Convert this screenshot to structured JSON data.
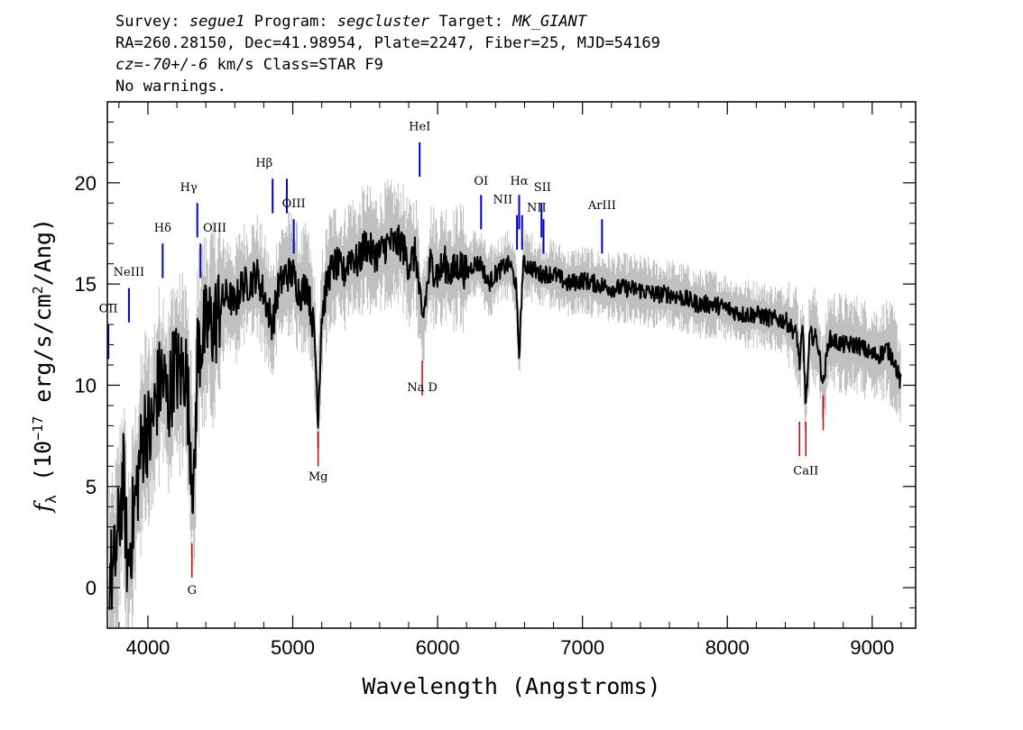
{
  "header": {
    "line1": {
      "survey_label": "Survey:",
      "survey": "segue1",
      "program_label": "Program:",
      "program": "segcluster",
      "target_label": "Target:",
      "target": "MK_GIANT"
    },
    "line2": "RA=260.28150, Dec=41.98954, Plate=2247, Fiber=25, MJD=54169",
    "line3": {
      "cz": "cz=-70+/-6",
      "rest": " km/s  Class=STAR F9"
    },
    "line4": "No warnings."
  },
  "chart_data": {
    "type": "line",
    "xlabel": "Wavelength (Angstroms)",
    "ylabel": "f_λ (10^-17 erg/s/cm^2/Ang)",
    "ylabel_parts": {
      "f": "f",
      "sub": "λ",
      "pre": " (10",
      "sup1": "−17",
      "mid": " erg/s/cm",
      "sup2": "2",
      "post": "/Ang)"
    },
    "xlim": [
      3720,
      9300
    ],
    "ylim": [
      -2,
      24
    ],
    "xticks": [
      4000,
      5000,
      6000,
      7000,
      8000,
      9000
    ],
    "yticks": [
      0,
      5,
      10,
      15,
      20
    ],
    "xtick_labels": [
      "4000",
      "5000",
      "6000",
      "7000",
      "8000",
      "9000"
    ],
    "ytick_labels": [
      "0",
      "5",
      "10",
      "15",
      "20"
    ],
    "colors": {
      "spectrum": "#000000",
      "error": "#c0c0c0",
      "emission": "#0000cc",
      "absorption": "#cc0000"
    },
    "series": [
      {
        "x": [
          3730,
          3760,
          3800,
          3830,
          3860,
          3900,
          3940,
          3980,
          4020,
          4060,
          4100,
          4140,
          4180,
          4220,
          4260,
          4300,
          4320,
          4340,
          4380,
          4420,
          4460,
          4500,
          4550,
          4600,
          4650,
          4700,
          4750,
          4800,
          4861,
          4900,
          4950,
          5000,
          5050,
          5100,
          5150,
          5175,
          5200,
          5250,
          5300,
          5350,
          5400,
          5450,
          5500,
          5550,
          5600,
          5650,
          5700,
          5750,
          5800,
          5850,
          5893,
          5950,
          6000,
          6050,
          6100,
          6150,
          6200,
          6250,
          6300,
          6350,
          6400,
          6450,
          6500,
          6540,
          6563,
          6590,
          6650,
          6700,
          6800,
          6900,
          7000,
          7100,
          7200,
          7300,
          7400,
          7500,
          7600,
          7700,
          7800,
          7900,
          8000,
          8100,
          8200,
          8300,
          8400,
          8480,
          8498,
          8520,
          8542,
          8570,
          8620,
          8662,
          8700,
          8800,
          8900,
          9000,
          9050,
          9100,
          9150,
          9200
        ],
        "y": [
          1.0,
          0.5,
          3.0,
          5.5,
          1.0,
          3.5,
          6.0,
          8.0,
          7.5,
          9.5,
          10.5,
          9.0,
          11.0,
          10.5,
          11.0,
          6.5,
          4.5,
          11.5,
          12.5,
          13.0,
          13.0,
          14.0,
          14.5,
          14.0,
          15.0,
          15.0,
          15.5,
          14.5,
          13.0,
          14.8,
          15.5,
          15.5,
          14.5,
          15.0,
          12.5,
          8.5,
          13.5,
          15.5,
          16.0,
          15.5,
          16.5,
          16.0,
          17.0,
          16.5,
          16.5,
          17.0,
          17.0,
          17.0,
          16.0,
          16.5,
          13.0,
          16.0,
          15.5,
          16.0,
          15.5,
          16.0,
          15.5,
          16.0,
          16.0,
          15.0,
          15.5,
          15.8,
          16.0,
          15.0,
          11.5,
          16.0,
          15.8,
          15.5,
          15.5,
          15.0,
          15.2,
          15.0,
          14.8,
          14.8,
          14.7,
          14.5,
          14.5,
          14.3,
          14.0,
          14.0,
          13.8,
          13.5,
          13.5,
          13.3,
          13.2,
          12.5,
          11.0,
          12.8,
          9.0,
          12.5,
          12.3,
          10.0,
          12.3,
          12.0,
          12.0,
          11.5,
          11.5,
          11.8,
          11.3,
          10.0
        ]
      }
    ],
    "emission_lines": [
      {
        "label": "OII",
        "x": 3727,
        "y_top": 13.0
      },
      {
        "label": "NeIII",
        "x": 3869,
        "y_top": 14.8
      },
      {
        "label": "Hδ",
        "x": 4102,
        "y_top": 17.0
      },
      {
        "label": "Hγ",
        "x": 4341,
        "y_top": 19.0
      },
      {
        "label": "OIII",
        "x": 4363,
        "y_top": 17.0
      },
      {
        "label": "Hβ",
        "x": 4861,
        "y_top": 20.2
      },
      {
        "label": "OIII",
        "x": 4959,
        "y_top": 20.2
      },
      {
        "label": "OIII",
        "x": 5007,
        "y_top": 18.2
      },
      {
        "label": "HeI",
        "x": 5876,
        "y_top": 22.0
      },
      {
        "label": "OI",
        "x": 6300,
        "y_top": 19.4
      },
      {
        "label": "NII",
        "x": 6548,
        "y_top": 18.4
      },
      {
        "label": "Hα",
        "x": 6563,
        "y_top": 19.4
      },
      {
        "label": "NII",
        "x": 6583,
        "y_top": 18.4
      },
      {
        "label": "SII",
        "x": 6717,
        "y_top": 19.0
      },
      {
        "label": "SII",
        "x": 6731,
        "y_top": 18.2
      },
      {
        "label": "ArIII",
        "x": 7135,
        "y_top": 18.2
      }
    ],
    "absorption_lines": [
      {
        "label": "G",
        "x": 4304,
        "y_bottom": 0.5
      },
      {
        "label": "Mg",
        "x": 5175,
        "y_bottom": 6.0
      },
      {
        "label": "Na D",
        "x": 5894,
        "y_bottom": 9.5
      },
      {
        "label": "CaII",
        "x": 8498,
        "y_bottom": 6.5
      },
      {
        "label": "CaII",
        "x": 8542,
        "y_bottom": 6.5
      },
      {
        "label": "CaII",
        "x": 8662,
        "y_bottom": 7.8
      }
    ],
    "line_labels": [
      {
        "text": "OII",
        "x": 3727,
        "y": 13.6,
        "anchor": "middle"
      },
      {
        "text": "NeIII",
        "x": 3869,
        "y": 15.4,
        "anchor": "middle"
      },
      {
        "text": "Hδ",
        "x": 4102,
        "y": 17.6,
        "anchor": "middle"
      },
      {
        "text": "Hγ",
        "x": 4341,
        "y": 19.6,
        "anchor": "end"
      },
      {
        "text": "OIII",
        "x": 4380,
        "y": 17.6,
        "anchor": "start"
      },
      {
        "text": "Hβ",
        "x": 4861,
        "y": 20.8,
        "anchor": "end"
      },
      {
        "text": "OIII",
        "x": 5007,
        "y": 18.8,
        "anchor": "middle"
      },
      {
        "text": "HeI",
        "x": 5876,
        "y": 22.6,
        "anchor": "middle"
      },
      {
        "text": "OI",
        "x": 6300,
        "y": 19.9,
        "anchor": "middle"
      },
      {
        "text": "NII",
        "x": 6450,
        "y": 19.0,
        "anchor": "middle"
      },
      {
        "text": "Hα",
        "x": 6563,
        "y": 19.9,
        "anchor": "middle"
      },
      {
        "text": "NII",
        "x": 6683,
        "y": 18.6,
        "anchor": "middle"
      },
      {
        "text": "SII",
        "x": 6724,
        "y": 19.6,
        "anchor": "middle"
      },
      {
        "text": "ArIII",
        "x": 7135,
        "y": 18.7,
        "anchor": "middle"
      },
      {
        "text": "G",
        "x": 4304,
        "y": -0.3,
        "anchor": "middle"
      },
      {
        "text": "Mg",
        "x": 5175,
        "y": 5.3,
        "anchor": "middle"
      },
      {
        "text": "Na D",
        "x": 5894,
        "y": 9.7,
        "anchor": "middle"
      },
      {
        "text": "CaII",
        "x": 8542,
        "y": 5.6,
        "anchor": "middle"
      }
    ]
  }
}
